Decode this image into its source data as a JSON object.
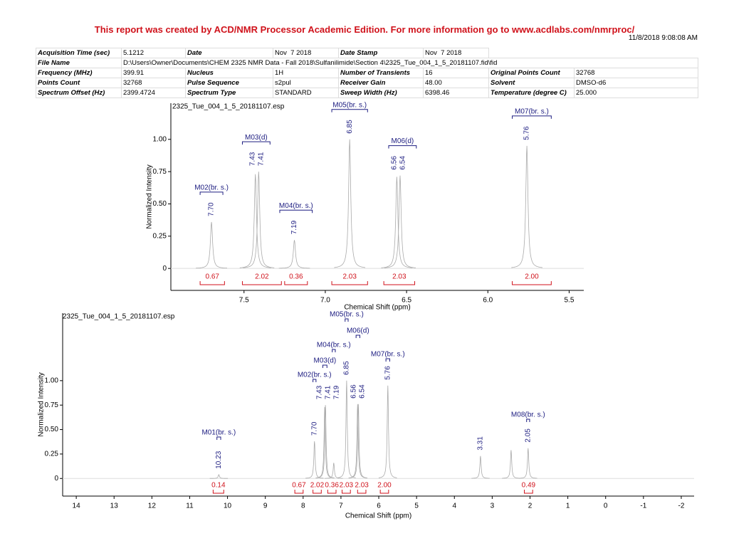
{
  "header": {
    "banner": "This report was created by ACD/NMR Processor Academic Edition. For more information go to www.acdlabs.com/nmrproc/",
    "timestamp": "11/8/2018 9:08:08 AM"
  },
  "table": {
    "rows": [
      [
        "Acquisition Time (sec)",
        "5.1212",
        "Date",
        "Nov  7 2018",
        "Date Stamp",
        "Nov  7 2018"
      ],
      [
        "File Name",
        "D:\\Users\\Owner\\Documents\\CHEM 2325 NMR Data - Fall 2018\\Sulfanilimide\\Section 4\\2325_Tue_004_1_5_20181107.fid\\fid"
      ],
      [
        "Frequency (MHz)",
        "399.91",
        "Nucleus",
        "1H",
        "Number of Transients",
        "16",
        "Original Points Count",
        "32768"
      ],
      [
        "Points Count",
        "32768",
        "Pulse Sequence",
        "s2pul",
        "Receiver Gain",
        "48.00",
        "Solvent",
        "DMSO-d6"
      ],
      [
        "Spectrum Offset (Hz)",
        "2399.4724",
        "Spectrum Type",
        "STANDARD",
        "Sweep Width (Hz)",
        "6398.46",
        "Temperature (degree C)",
        "25.000"
      ]
    ]
  },
  "chart_data": [
    {
      "type": "nmr",
      "title": "2325_Tue_004_1_5_20181107.esp",
      "xlabel": "Chemical Shift (ppm)",
      "ylabel": "Normalized Intensity",
      "xlim": [
        7.95,
        5.41
      ],
      "xticks": [
        7.5,
        {
          "value": 7.0,
          "label": "7.0"
        },
        6.5,
        {
          "value": 6.0,
          "label": "6.0"
        },
        5.5
      ],
      "ylim": [
        -0.17,
        1.28
      ],
      "yticks": [
        0,
        0.25,
        {
          "value": 0.5,
          "label": "0.50"
        },
        0.75,
        {
          "value": 1.0,
          "label": "1.00"
        }
      ],
      "peaks": [
        {
          "shift": 7.7,
          "label": "7.70",
          "intensity": 0.36
        },
        {
          "shift": 7.43,
          "label": "7.43",
          "intensity": 0.73
        },
        {
          "shift": 7.41,
          "label": "7.41",
          "intensity": 0.75
        },
        {
          "shift": 7.19,
          "label": "7.19",
          "intensity": 0.22
        },
        {
          "shift": 6.85,
          "label": "6.85",
          "intensity": 1.0
        },
        {
          "shift": 6.56,
          "label": "6.56",
          "intensity": 0.71
        },
        {
          "shift": 6.54,
          "label": "6.54",
          "intensity": 0.72
        },
        {
          "shift": 5.76,
          "label": "5.76",
          "intensity": 0.95
        }
      ],
      "multiplets": [
        {
          "name": "M02(br. s.)",
          "from": 7.77,
          "to": 7.63
        },
        {
          "name": "M03(d)",
          "from": 7.51,
          "to": 7.34
        },
        {
          "name": "M04(br. s.)",
          "from": 7.28,
          "to": 7.08
        },
        {
          "name": "M05(br. s.)",
          "from": 6.96,
          "to": 6.74
        },
        {
          "name": "M06(d)",
          "from": 6.61,
          "to": 6.44
        },
        {
          "name": "M07(br. s.)",
          "from": 5.85,
          "to": 5.61
        }
      ],
      "integrals": [
        {
          "value": 0.67,
          "from": 7.77,
          "to": 7.62
        },
        {
          "value": 2.02,
          "from": 7.51,
          "to": 7.27
        },
        {
          "value": 0.36,
          "from": 7.25,
          "to": 7.11
        },
        {
          "value": 2.03,
          "from": 6.96,
          "to": 6.74
        },
        {
          "value": 2.03,
          "from": 6.64,
          "to": 6.45
        },
        {
          "value": 2.0,
          "label": "2.00",
          "from": 5.85,
          "to": 5.61
        }
      ]
    },
    {
      "type": "nmr",
      "title": "2325_Tue_004_1_5_20181107.esp",
      "xlabel": "Chemical Shift (ppm)",
      "ylabel": "Normalized Intensity",
      "xlim": [
        14.36,
        -2.34
      ],
      "xticks": [
        14,
        13,
        12,
        11,
        10,
        9,
        8,
        7,
        6,
        5,
        4,
        3,
        2,
        1,
        0,
        -1,
        -2
      ],
      "ylim": [
        -0.18,
        1.69
      ],
      "yticks": [
        0,
        0.25,
        {
          "value": 0.5,
          "label": "0.50"
        },
        0.75,
        {
          "value": 1.0,
          "label": "1.00"
        }
      ],
      "peaks": [
        {
          "shift": 10.23,
          "label": "10.23",
          "intensity": 0.04
        },
        {
          "shift": 7.7,
          "label": "7.70",
          "intensity": 0.38
        },
        {
          "shift": 7.43,
          "label": "7.43",
          "intensity": 0.73
        },
        {
          "shift": 7.41,
          "label": "7.41",
          "intensity": 0.75
        },
        {
          "shift": 7.19,
          "label": "7.19",
          "intensity": 0.16
        },
        {
          "shift": 6.85,
          "label": "6.85",
          "intensity": 1.0
        },
        {
          "shift": 6.56,
          "label": "6.56",
          "intensity": 0.76
        },
        {
          "shift": 6.54,
          "label": "6.54",
          "intensity": 0.76
        },
        {
          "shift": 5.76,
          "label": "5.76",
          "intensity": 0.95
        },
        {
          "shift": 3.31,
          "label": "3.31",
          "intensity": 0.23
        },
        {
          "shift": 2.5,
          "label": null,
          "intensity": 0.29
        },
        {
          "shift": 2.05,
          "label": "2.05",
          "intensity": 0.31
        }
      ],
      "multiplets": [
        {
          "name": "M01(br. s.)",
          "from": 10.28,
          "to": 10.18
        },
        {
          "name": "M02(br. s.)",
          "from": 7.74,
          "to": 7.66
        },
        {
          "name": "M03(d)",
          "from": 7.48,
          "to": 7.37
        },
        {
          "name": "M04(br. s.)",
          "from": 7.23,
          "to": 7.15
        },
        {
          "name": "M05(br. s.)",
          "from": 6.89,
          "to": 6.81
        },
        {
          "name": "M06(d)",
          "from": 6.6,
          "to": 6.5
        },
        {
          "name": "M07(br. s.)",
          "from": 5.81,
          "to": 5.71
        },
        {
          "name": "M08(br. s.)",
          "from": 2.09,
          "to": 2.01
        }
      ],
      "integrals": [
        {
          "value": 0.14,
          "from": 10.38,
          "to": 10.1
        },
        {
          "value": 0.67,
          "from": 8.22,
          "to": 8.0
        },
        {
          "value": 2.02,
          "from": 7.74,
          "to": 7.52
        },
        {
          "value": 0.36,
          "from": 7.35,
          "to": 7.13
        },
        {
          "value": 2.03,
          "from": 6.97,
          "to": 6.75
        },
        {
          "value": 2.03,
          "from": 6.56,
          "to": 6.34
        },
        {
          "value": 2.0,
          "label": "2.00",
          "from": 5.96,
          "to": 5.74
        },
        {
          "value": 0.49,
          "from": 2.15,
          "to": 1.93
        }
      ]
    }
  ]
}
